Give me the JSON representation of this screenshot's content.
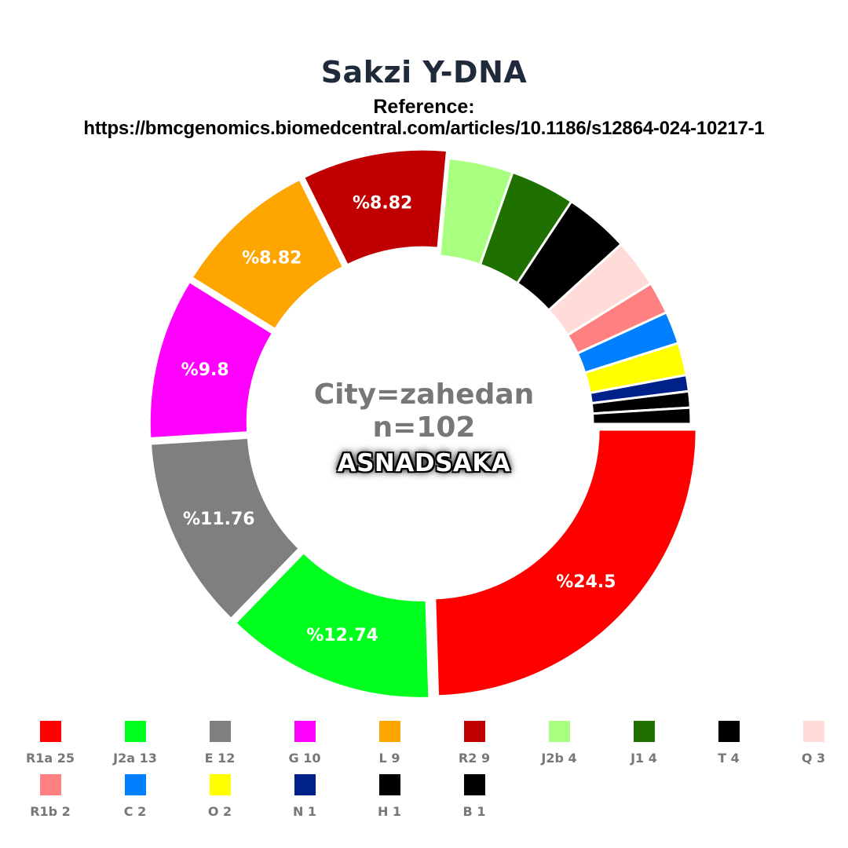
{
  "header": {
    "title": "Sakzi Y-DNA",
    "reference_label": "Reference:",
    "reference_url": "https://bmcgenomics.biomedcentral.com/articles/10.1186/s12864-024-10217-1"
  },
  "center": {
    "city": "City=zahedan",
    "n": "n=102",
    "brand": "ASNADSAKA"
  },
  "legend": {
    "items": [
      {
        "label": "R1a 25",
        "color": "#ff0000"
      },
      {
        "label": "J2a 13",
        "color": "#00ff1e"
      },
      {
        "label": "E 12",
        "color": "#7f7f7f"
      },
      {
        "label": "G 10",
        "color": "#ff00ff"
      },
      {
        "label": "L 9",
        "color": "#ffa500"
      },
      {
        "label": "R2 9",
        "color": "#c00000"
      },
      {
        "label": "J2b 4",
        "color": "#a8ff80"
      },
      {
        "label": "J1 4",
        "color": "#207000"
      },
      {
        "label": "T 4",
        "color": "#000000"
      },
      {
        "label": "Q 3",
        "color": "#ffdcd8"
      },
      {
        "label": "R1b 2",
        "color": "#ff8080"
      },
      {
        "label": "C 2",
        "color": "#0080ff"
      },
      {
        "label": "O 2",
        "color": "#ffff00"
      },
      {
        "label": "N 1",
        "color": "#00208a"
      },
      {
        "label": "H 1",
        "color": "#000000"
      },
      {
        "label": "B 1",
        "color": "#000000"
      }
    ]
  },
  "chart_data": {
    "type": "pie",
    "subtype": "donut",
    "title": "Sakzi Y-DNA",
    "subtitle": "Reference: https://bmcgenomics.biomedcentral.com/articles/10.1186/s12864-024-10217-1",
    "center_text": [
      "City=zahedan",
      "n=102",
      "ASNADSAKA"
    ],
    "total": 102,
    "categories": [
      "R1a",
      "J2a",
      "E",
      "G",
      "L",
      "R2",
      "J2b",
      "J1",
      "T",
      "Q",
      "R1b",
      "C",
      "O",
      "N",
      "H",
      "B"
    ],
    "values": [
      25,
      13,
      12,
      10,
      9,
      9,
      4,
      4,
      4,
      3,
      2,
      2,
      2,
      1,
      1,
      1
    ],
    "colors": [
      "#ff0000",
      "#00ff1e",
      "#7f7f7f",
      "#ff00ff",
      "#ffa500",
      "#c00000",
      "#a8ff80",
      "#207000",
      "#000000",
      "#ffdcd8",
      "#ff8080",
      "#0080ff",
      "#ffff00",
      "#00208a",
      "#000000",
      "#000000"
    ],
    "data_labels": [
      "%24.5",
      "%12.74",
      "%11.76",
      "%9.8",
      "%8.82",
      "%8.82",
      "",
      "",
      "",
      "",
      "",
      "",
      "",
      "",
      "",
      ""
    ],
    "exploded": [
      true,
      true,
      true,
      true,
      true,
      true,
      false,
      false,
      false,
      false,
      false,
      false,
      false,
      false,
      false,
      false
    ],
    "start_angle_deg": 0,
    "direction": "clockwise",
    "legend_position": "bottom"
  }
}
